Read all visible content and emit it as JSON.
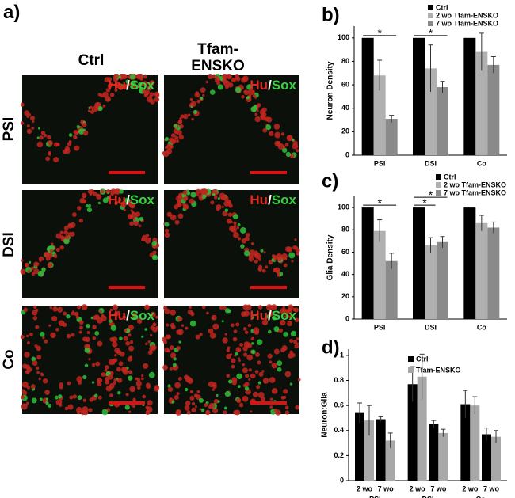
{
  "panel_a": {
    "label": "a)",
    "columns": [
      "Ctrl",
      "Tfam-ENSKO"
    ],
    "rows": [
      "PSI",
      "DSI",
      "Co"
    ],
    "overlay": {
      "hu": "Hu",
      "slash": "/",
      "sox": "Sox"
    }
  },
  "chart_data": [
    {
      "type": "bar",
      "panel_label": "b)",
      "y_label": "Neuron Density",
      "categories": [
        "PSI",
        "DSI",
        "Co"
      ],
      "series": [
        {
          "name": "Ctrl",
          "color": "#000000",
          "values": [
            100,
            100,
            100
          ]
        },
        {
          "name": "2 wo Tfam-ENSKO",
          "color": "#b0b0b0",
          "values": [
            68,
            74,
            88
          ],
          "errors": [
            13,
            20,
            16
          ]
        },
        {
          "name": "7 wo Tfam-ENSKO",
          "color": "#8a8a8a",
          "values": [
            31,
            58,
            77
          ],
          "errors": [
            3,
            5,
            7
          ]
        }
      ],
      "ylim": [
        0,
        110
      ],
      "yticks": [
        0,
        20,
        40,
        60,
        80,
        100
      ],
      "legend": "upper right",
      "significance": [
        {
          "label": "*",
          "category": 0,
          "series": [
            0,
            2
          ]
        },
        {
          "label": "*",
          "category": 1,
          "series": [
            0,
            2
          ]
        }
      ]
    },
    {
      "type": "bar",
      "panel_label": "c)",
      "y_label": "Glia Density",
      "categories": [
        "PSI",
        "DSI",
        "Co"
      ],
      "series": [
        {
          "name": "Ctrl",
          "color": "#000000",
          "values": [
            100,
            100,
            100
          ]
        },
        {
          "name": "2 wo Tfam-ENSKO",
          "color": "#b0b0b0",
          "values": [
            79,
            66,
            86
          ],
          "errors": [
            10,
            7,
            7
          ]
        },
        {
          "name": "7 wo Tfam-ENSKO",
          "color": "#8a8a8a",
          "values": [
            52,
            69,
            82
          ],
          "errors": [
            7,
            5,
            5
          ]
        }
      ],
      "ylim": [
        0,
        110
      ],
      "yticks": [
        0,
        20,
        40,
        60,
        80,
        100
      ],
      "legend": "upper right",
      "significance": [
        {
          "label": "*",
          "category": 0,
          "series": [
            0,
            2
          ]
        },
        {
          "label": "*",
          "category": 1,
          "series": [
            0,
            1
          ]
        },
        {
          "label": "*",
          "category": 1,
          "series": [
            0,
            2
          ]
        }
      ]
    },
    {
      "type": "bar",
      "panel_label": "d)",
      "y_label": "Neuron:Glia",
      "categories": [
        "2 wo",
        "7 wo",
        "2 wo",
        "7 wo",
        "2 wo",
        "7 wo"
      ],
      "groups": [
        "PSI",
        "DSI",
        "Co"
      ],
      "series": [
        {
          "name": "Ctrl",
          "color": "#000000",
          "values": [
            0.54,
            0.49,
            0.77,
            0.45,
            0.61,
            0.37
          ],
          "errors": [
            0.08,
            0.02,
            0.14,
            0.03,
            0.11,
            0.05
          ]
        },
        {
          "name": "Tfam-ENSKO",
          "color": "#a8a8a8",
          "values": [
            0.48,
            0.32,
            0.83,
            0.38,
            0.6,
            0.35
          ],
          "errors": [
            0.12,
            0.06,
            0.18,
            0.03,
            0.07,
            0.05
          ]
        }
      ],
      "ylim": [
        0,
        1.05
      ],
      "yticks": [
        0,
        0.2,
        0.4,
        0.6,
        0.8,
        1
      ],
      "legend": "upper center"
    }
  ]
}
